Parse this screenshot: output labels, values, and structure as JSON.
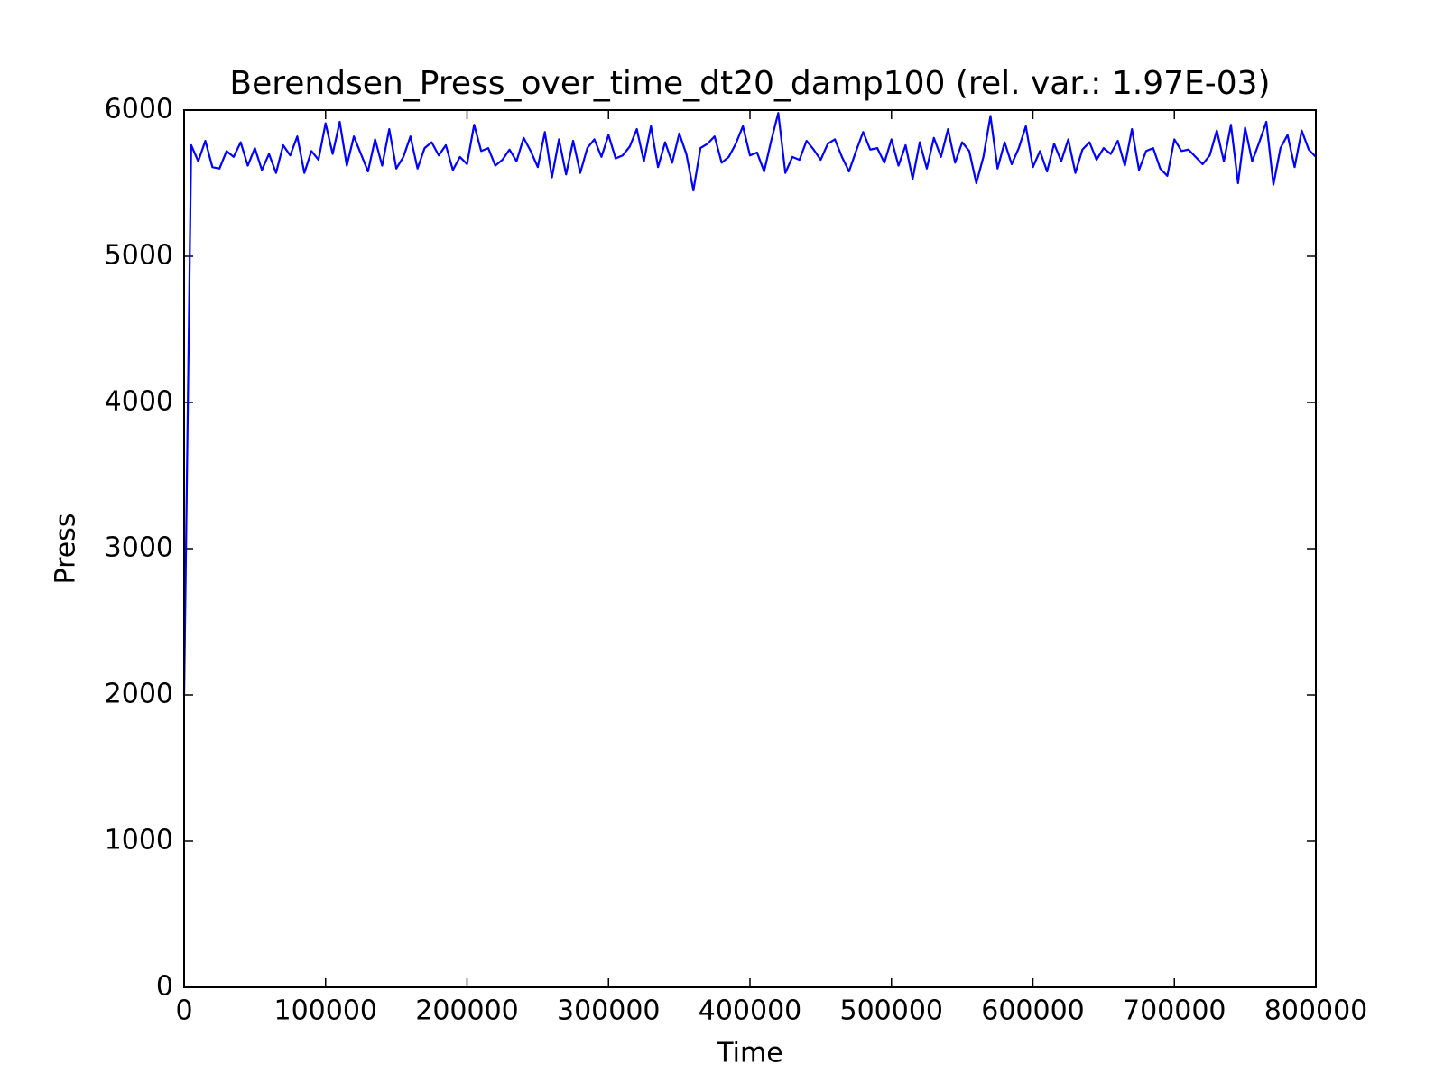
{
  "chart_data": {
    "type": "line",
    "title": "Berendsen_Press_over_time_dt20_damp100 (rel. var.: 1.97E-03)",
    "xlabel": "Time",
    "ylabel": "Press",
    "x": [
      0,
      5000,
      10000,
      15000,
      20000,
      25000,
      30000,
      35000,
      40000,
      45000,
      50000,
      55000,
      60000,
      65000,
      70000,
      75000,
      80000,
      85000,
      90000,
      95000,
      100000,
      105000,
      110000,
      115000,
      120000,
      125000,
      130000,
      135000,
      140000,
      145000,
      150000,
      155000,
      160000,
      165000,
      170000,
      175000,
      180000,
      185000,
      190000,
      195000,
      200000,
      205000,
      210000,
      215000,
      220000,
      225000,
      230000,
      235000,
      240000,
      245000,
      250000,
      255000,
      260000,
      265000,
      270000,
      275000,
      280000,
      285000,
      290000,
      295000,
      300000,
      305000,
      310000,
      315000,
      320000,
      325000,
      330000,
      335000,
      340000,
      345000,
      350000,
      355000,
      360000,
      365000,
      370000,
      375000,
      380000,
      385000,
      390000,
      395000,
      400000,
      405000,
      410000,
      415000,
      420000,
      425000,
      430000,
      435000,
      440000,
      445000,
      450000,
      455000,
      460000,
      465000,
      470000,
      475000,
      480000,
      485000,
      490000,
      495000,
      500000,
      505000,
      510000,
      515000,
      520000,
      525000,
      530000,
      535000,
      540000,
      545000,
      550000,
      555000,
      560000,
      565000,
      570000,
      575000,
      580000,
      585000,
      590000,
      595000,
      600000,
      605000,
      610000,
      615000,
      620000,
      625000,
      630000,
      635000,
      640000,
      645000,
      650000,
      655000,
      660000,
      665000,
      670000,
      675000,
      680000,
      685000,
      690000,
      695000,
      700000,
      705000,
      710000,
      715000,
      720000,
      725000,
      730000,
      735000,
      740000,
      745000,
      750000,
      755000,
      760000,
      765000,
      770000,
      775000,
      780000,
      785000,
      790000,
      795000,
      800000
    ],
    "series": [
      {
        "name": "Press",
        "color": "#0000ff",
        "values": [
          2000,
          5760,
          5650,
          5790,
          5610,
          5600,
          5720,
          5680,
          5780,
          5620,
          5740,
          5590,
          5700,
          5570,
          5760,
          5690,
          5820,
          5570,
          5720,
          5660,
          5910,
          5700,
          5920,
          5620,
          5820,
          5700,
          5580,
          5800,
          5620,
          5870,
          5600,
          5680,
          5820,
          5600,
          5740,
          5780,
          5690,
          5760,
          5590,
          5680,
          5630,
          5900,
          5720,
          5740,
          5620,
          5660,
          5730,
          5650,
          5810,
          5720,
          5610,
          5850,
          5540,
          5800,
          5560,
          5790,
          5570,
          5740,
          5800,
          5680,
          5830,
          5670,
          5690,
          5750,
          5870,
          5650,
          5890,
          5610,
          5780,
          5640,
          5840,
          5700,
          5450,
          5740,
          5770,
          5820,
          5640,
          5680,
          5770,
          5890,
          5690,
          5710,
          5580,
          5790,
          5980,
          5570,
          5680,
          5660,
          5790,
          5730,
          5660,
          5770,
          5800,
          5680,
          5580,
          5720,
          5850,
          5730,
          5740,
          5640,
          5800,
          5620,
          5760,
          5530,
          5780,
          5600,
          5810,
          5680,
          5870,
          5640,
          5780,
          5720,
          5500,
          5680,
          5960,
          5600,
          5780,
          5630,
          5740,
          5890,
          5610,
          5720,
          5580,
          5770,
          5650,
          5800,
          5570,
          5730,
          5780,
          5660,
          5740,
          5700,
          5790,
          5620,
          5870,
          5590,
          5720,
          5740,
          5600,
          5550,
          5800,
          5720,
          5730,
          5680,
          5630,
          5690,
          5860,
          5650,
          5900,
          5500,
          5880,
          5650,
          5780,
          5920,
          5490,
          5740,
          5830,
          5610,
          5860,
          5730,
          5680
        ]
      }
    ],
    "xlim": [
      0,
      800000
    ],
    "xticks": [
      0,
      100000,
      200000,
      300000,
      400000,
      500000,
      600000,
      700000,
      800000
    ],
    "ylim": [
      0,
      6000
    ],
    "yticks": [
      0,
      1000,
      2000,
      3000,
      4000,
      5000,
      6000
    ],
    "grid": false
  }
}
